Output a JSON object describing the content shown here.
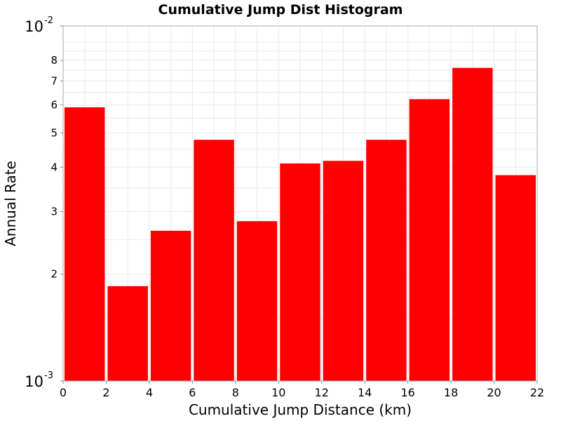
{
  "chart_data": {
    "type": "bar",
    "title": "Cumulative Jump Dist Histogram",
    "xlabel": "Cumulative Jump Distance (km)",
    "ylabel": "Annual Rate",
    "yscale": "log",
    "xlim": [
      0,
      22
    ],
    "ylim": [
      0.001,
      0.01
    ],
    "grid": true,
    "bar_color": "#ff0000",
    "x_ticks": [
      "0",
      "2",
      "4",
      "6",
      "8",
      "10",
      "12",
      "14",
      "16",
      "18",
      "20",
      "22"
    ],
    "y_major_ticks": [
      {
        "value": 0.001,
        "base": "10",
        "exp": "-3"
      },
      {
        "value": 0.01,
        "base": "10",
        "exp": "-2"
      }
    ],
    "y_minor_ticks": [
      {
        "value": 0.002,
        "label": "2"
      },
      {
        "value": 0.003,
        "label": "3"
      },
      {
        "value": 0.004,
        "label": "4"
      },
      {
        "value": 0.005,
        "label": "5"
      },
      {
        "value": 0.006,
        "label": "6"
      },
      {
        "value": 0.007,
        "label": "7"
      },
      {
        "value": 0.008,
        "label": "8"
      }
    ],
    "bins": [
      {
        "x0": 0,
        "x1": 2,
        "value": 0.0059
      },
      {
        "x0": 2,
        "x1": 4,
        "value": 0.00185
      },
      {
        "x0": 4,
        "x1": 6,
        "value": 0.00265
      },
      {
        "x0": 6,
        "x1": 8,
        "value": 0.00478
      },
      {
        "x0": 8,
        "x1": 10,
        "value": 0.00282
      },
      {
        "x0": 10,
        "x1": 12,
        "value": 0.0041
      },
      {
        "x0": 12,
        "x1": 14,
        "value": 0.00417
      },
      {
        "x0": 14,
        "x1": 16,
        "value": 0.00478
      },
      {
        "x0": 16,
        "x1": 18,
        "value": 0.00622
      },
      {
        "x0": 18,
        "x1": 20,
        "value": 0.00762
      },
      {
        "x0": 20,
        "x1": 22,
        "value": 0.0038
      }
    ]
  }
}
